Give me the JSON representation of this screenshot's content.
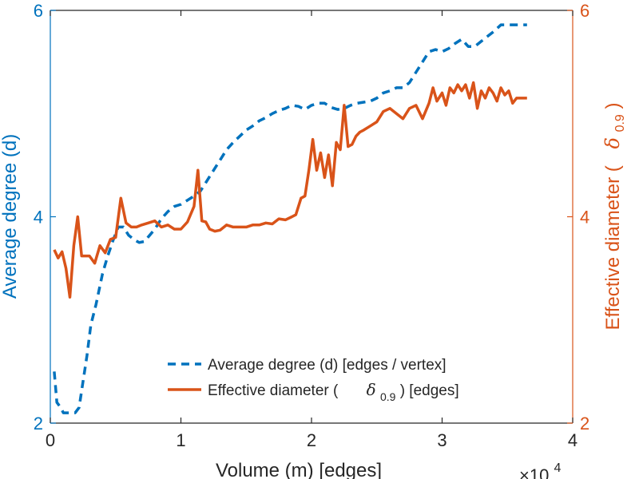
{
  "chart_data": {
    "type": "line",
    "xlabel": "Volume (m) [edges]",
    "x_exponent": "×10",
    "x_exponent_power": "4",
    "ylabel_left": "Average degree (d)",
    "ylabel_right_text": "Effective diameter (",
    "ylabel_right_symbol": "δ",
    "ylabel_right_sub": "0.9",
    "ylabel_right_close": ")",
    "xlim": [
      0,
      4
    ],
    "ylim_left": [
      2,
      6
    ],
    "ylim_right": [
      2,
      6
    ],
    "x_ticks": [
      "0",
      "1",
      "2",
      "3",
      "4"
    ],
    "y_ticks_left": [
      "2",
      "4",
      "6"
    ],
    "y_ticks_right": [
      "2",
      "4",
      "6"
    ],
    "legend_position": "bottom-right",
    "colors": {
      "left_axis": "#0072BD",
      "right_axis": "#D95319",
      "axes": "#262626"
    },
    "legend": {
      "avg_text": "Average degree (d) [edges / vertex]",
      "diam_prefix": "Effective diameter (",
      "diam_symbol": "δ",
      "diam_sub": "0.9",
      "diam_suffix": ") [edges]"
    },
    "series": [
      {
        "name": "Average degree (d) [edges / vertex]",
        "axis": "left",
        "style": "dashed",
        "color": "#0072BD",
        "x": [
          0.03,
          0.05,
          0.08,
          0.1,
          0.13,
          0.16,
          0.19,
          0.22,
          0.25,
          0.28,
          0.31,
          0.35,
          0.4,
          0.44,
          0.48,
          0.52,
          0.56,
          0.6,
          0.64,
          0.68,
          0.72,
          0.76,
          0.8,
          0.85,
          0.9,
          0.95,
          1.0,
          1.05,
          1.1,
          1.15,
          1.2,
          1.25,
          1.3,
          1.35,
          1.4,
          1.45,
          1.5,
          1.55,
          1.6,
          1.65,
          1.7,
          1.75,
          1.8,
          1.85,
          1.9,
          1.95,
          2.0,
          2.05,
          2.1,
          2.15,
          2.2,
          2.25,
          2.3,
          2.35,
          2.4,
          2.45,
          2.5,
          2.55,
          2.6,
          2.65,
          2.7,
          2.75,
          2.8,
          2.85,
          2.9,
          2.95,
          3.0,
          3.05,
          3.1,
          3.15,
          3.2,
          3.25,
          3.3,
          3.35,
          3.4,
          3.45,
          3.5,
          3.55,
          3.6,
          3.65
        ],
        "values": [
          2.5,
          2.2,
          2.15,
          2.1,
          2.1,
          2.1,
          2.1,
          2.15,
          2.4,
          2.65,
          2.95,
          3.15,
          3.45,
          3.62,
          3.77,
          3.9,
          3.9,
          3.82,
          3.78,
          3.75,
          3.76,
          3.82,
          3.88,
          3.98,
          4.05,
          4.1,
          4.12,
          4.16,
          4.2,
          4.25,
          4.35,
          4.45,
          4.55,
          4.65,
          4.72,
          4.78,
          4.84,
          4.88,
          4.93,
          4.96,
          5.0,
          5.03,
          5.05,
          5.08,
          5.07,
          5.04,
          5.08,
          5.1,
          5.1,
          5.06,
          5.04,
          5.05,
          5.08,
          5.1,
          5.11,
          5.12,
          5.15,
          5.2,
          5.22,
          5.25,
          5.25,
          5.3,
          5.4,
          5.5,
          5.6,
          5.62,
          5.6,
          5.63,
          5.68,
          5.72,
          5.65,
          5.65,
          5.7,
          5.75,
          5.8,
          5.86,
          5.86,
          5.86,
          5.86,
          5.86
        ]
      },
      {
        "name": "Effective diameter (δ0.9) [edges]",
        "axis": "right",
        "style": "solid",
        "color": "#D95319",
        "x": [
          0.03,
          0.06,
          0.09,
          0.12,
          0.15,
          0.18,
          0.21,
          0.24,
          0.27,
          0.3,
          0.34,
          0.38,
          0.42,
          0.46,
          0.5,
          0.54,
          0.58,
          0.62,
          0.66,
          0.7,
          0.75,
          0.8,
          0.85,
          0.9,
          0.95,
          1.0,
          1.05,
          1.1,
          1.13,
          1.16,
          1.19,
          1.22,
          1.26,
          1.3,
          1.35,
          1.4,
          1.45,
          1.5,
          1.55,
          1.6,
          1.65,
          1.7,
          1.75,
          1.8,
          1.85,
          1.88,
          1.92,
          1.95,
          1.98,
          2.01,
          2.04,
          2.07,
          2.1,
          2.13,
          2.16,
          2.19,
          2.22,
          2.25,
          2.28,
          2.31,
          2.34,
          2.37,
          2.4,
          2.45,
          2.5,
          2.55,
          2.6,
          2.65,
          2.7,
          2.75,
          2.8,
          2.85,
          2.9,
          2.93,
          2.96,
          3.0,
          3.03,
          3.06,
          3.09,
          3.12,
          3.15,
          3.18,
          3.21,
          3.24,
          3.27,
          3.3,
          3.33,
          3.36,
          3.39,
          3.42,
          3.45,
          3.48,
          3.51,
          3.54,
          3.57,
          3.6,
          3.63,
          3.65
        ],
        "values": [
          3.68,
          3.6,
          3.66,
          3.5,
          3.22,
          3.72,
          4.0,
          3.62,
          3.62,
          3.62,
          3.55,
          3.72,
          3.65,
          3.78,
          3.8,
          4.18,
          3.94,
          3.9,
          3.9,
          3.92,
          3.94,
          3.96,
          3.9,
          3.92,
          3.88,
          3.88,
          3.95,
          4.1,
          4.45,
          3.96,
          3.95,
          3.88,
          3.86,
          3.87,
          3.92,
          3.9,
          3.9,
          3.9,
          3.92,
          3.92,
          3.94,
          3.93,
          3.98,
          3.97,
          4.0,
          4.02,
          4.18,
          4.2,
          4.45,
          4.75,
          4.45,
          4.62,
          4.38,
          4.6,
          4.3,
          4.72,
          4.65,
          5.08,
          4.68,
          4.7,
          4.78,
          4.82,
          4.84,
          4.88,
          4.92,
          5.02,
          5.05,
          5.0,
          4.95,
          5.05,
          5.08,
          4.95,
          5.1,
          5.25,
          5.12,
          5.2,
          5.08,
          5.25,
          5.2,
          5.28,
          5.22,
          5.28,
          5.15,
          5.3,
          5.05,
          5.22,
          5.15,
          5.25,
          5.2,
          5.12,
          5.25,
          5.18,
          5.22,
          5.1,
          5.15,
          5.15,
          5.15,
          5.15
        ]
      }
    ]
  }
}
